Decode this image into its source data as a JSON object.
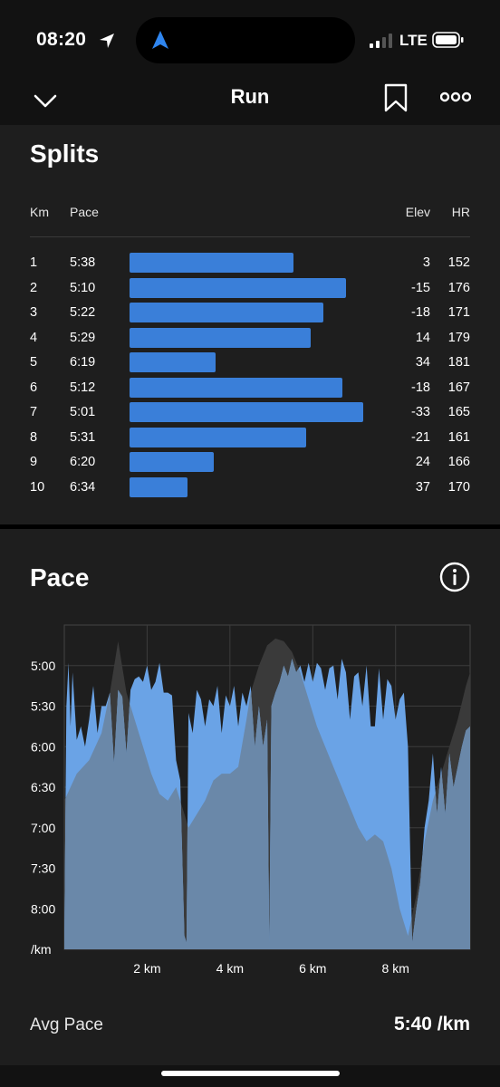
{
  "status_bar": {
    "time": "08:20",
    "network": "LTE"
  },
  "nav": {
    "title": "Run"
  },
  "splits": {
    "title": "Splits",
    "headers": {
      "km": "Km",
      "pace": "Pace",
      "elev": "Elev",
      "hr": "HR"
    },
    "rows": [
      {
        "km": "1",
        "pace": "5:38",
        "elev": "3",
        "hr": "152",
        "pace_seconds": 338
      },
      {
        "km": "2",
        "pace": "5:10",
        "elev": "-15",
        "hr": "176",
        "pace_seconds": 310
      },
      {
        "km": "3",
        "pace": "5:22",
        "elev": "-18",
        "hr": "171",
        "pace_seconds": 322
      },
      {
        "km": "4",
        "pace": "5:29",
        "elev": "14",
        "hr": "179",
        "pace_seconds": 329
      },
      {
        "km": "5",
        "pace": "6:19",
        "elev": "34",
        "hr": "181",
        "pace_seconds": 379
      },
      {
        "km": "6",
        "pace": "5:12",
        "elev": "-18",
        "hr": "167",
        "pace_seconds": 312
      },
      {
        "km": "7",
        "pace": "5:01",
        "elev": "-33",
        "hr": "165",
        "pace_seconds": 301
      },
      {
        "km": "8",
        "pace": "5:31",
        "elev": "-21",
        "hr": "161",
        "pace_seconds": 331
      },
      {
        "km": "9",
        "pace": "6:20",
        "elev": "24",
        "hr": "166",
        "pace_seconds": 380
      },
      {
        "km": "10",
        "pace": "6:34",
        "elev": "37",
        "hr": "170",
        "pace_seconds": 394
      }
    ]
  },
  "pace_section": {
    "title": "Pace",
    "avg_label": "Avg Pace",
    "avg_value": "5:40 /km"
  },
  "colors": {
    "accent": "#3a7fd9",
    "pace_fill": "#6aa3e6",
    "elev_fill": "#3a3a3a",
    "overlap_fill": "#6a88a9",
    "card_bg": "#1e1e1e"
  },
  "chart_data": {
    "type": "area",
    "xlabel": "",
    "ylabel": "",
    "x_unit": "km",
    "x_range": [
      0,
      9.8
    ],
    "x_ticks": [
      2,
      4,
      6,
      8
    ],
    "x_tick_labels": [
      "2 km",
      "4 km",
      "6 km",
      "8 km"
    ],
    "y_ticks_seconds": [
      300,
      330,
      360,
      390,
      420,
      450,
      480
    ],
    "y_tick_labels": [
      "5:00",
      "5:30",
      "6:00",
      "6:30",
      "7:00",
      "7:30",
      "8:00",
      "/km"
    ],
    "y_range_seconds": [
      270,
      510
    ],
    "y_inverted": true,
    "grid": true,
    "series": [
      {
        "x": [
          0,
          0.05,
          0.1,
          0.15,
          0.2,
          0.3,
          0.4,
          0.5,
          0.6,
          0.7,
          0.8,
          0.9,
          1.0,
          1.1,
          1.2,
          1.3,
          1.4,
          1.5,
          1.6,
          1.7,
          1.8,
          1.9,
          2.0,
          2.1,
          2.2,
          2.3,
          2.4,
          2.5,
          2.6,
          2.7,
          2.8,
          2.9,
          2.95,
          3.0,
          3.1,
          3.2,
          3.3,
          3.4,
          3.5,
          3.6,
          3.7,
          3.8,
          3.9,
          4.0,
          4.1,
          4.2,
          4.3,
          4.4,
          4.5,
          4.6,
          4.7,
          4.8,
          4.9,
          4.95,
          5.0,
          5.1,
          5.2,
          5.3,
          5.4,
          5.5,
          5.6,
          5.7,
          5.8,
          5.9,
          6.0,
          6.1,
          6.2,
          6.3,
          6.4,
          6.5,
          6.6,
          6.7,
          6.8,
          6.9,
          7.0,
          7.1,
          7.2,
          7.3,
          7.4,
          7.5,
          7.6,
          7.7,
          7.8,
          7.9,
          8.0,
          8.1,
          8.2,
          8.3,
          8.4,
          8.5,
          8.6,
          8.7,
          8.8,
          8.9,
          9.0,
          9.1,
          9.2,
          9.3,
          9.4,
          9.5,
          9.6,
          9.7,
          9.8
        ],
        "values": [
          505,
          330,
          298,
          345,
          305,
          355,
          345,
          360,
          340,
          315,
          350,
          330,
          330,
          320,
          372,
          318,
          323,
          365,
          318,
          310,
          308,
          312,
          300,
          318,
          312,
          298,
          320,
          320,
          322,
          370,
          385,
          500,
          505,
          335,
          350,
          318,
          325,
          345,
          325,
          330,
          315,
          350,
          322,
          330,
          315,
          345,
          320,
          330,
          315,
          360,
          330,
          360,
          340,
          505,
          330,
          320,
          312,
          300,
          308,
          295,
          305,
          300,
          312,
          298,
          312,
          298,
          302,
          318,
          302,
          300,
          325,
          295,
          305,
          340,
          308,
          305,
          330,
          300,
          345,
          345,
          302,
          340,
          310,
          315,
          340,
          325,
          320,
          360,
          505,
          480,
          460,
          420,
          400,
          365,
          410,
          375,
          410,
          365,
          390,
          375,
          360,
          348,
          345
        ]
      },
      {
        "x": [
          0,
          0.3,
          0.6,
          0.9,
          1.1,
          1.3,
          1.5,
          1.7,
          1.9,
          2.1,
          2.3,
          2.5,
          2.7,
          2.9,
          3.0,
          3.2,
          3.4,
          3.6,
          3.8,
          4.0,
          4.2,
          4.4,
          4.5,
          4.7,
          4.9,
          5.1,
          5.3,
          5.5,
          5.7,
          5.9,
          6.1,
          6.3,
          6.5,
          6.7,
          6.9,
          7.1,
          7.3,
          7.5,
          7.7,
          7.9,
          8.1,
          8.3,
          8.5,
          8.7,
          8.9,
          9.1,
          9.3,
          9.5,
          9.7,
          9.8
        ],
        "values": [
          400,
          380,
          370,
          350,
          320,
          282,
          320,
          340,
          360,
          380,
          395,
          400,
          390,
          410,
          420,
          410,
          400,
          385,
          380,
          380,
          375,
          340,
          320,
          300,
          285,
          280,
          282,
          290,
          305,
          325,
          345,
          360,
          375,
          390,
          405,
          420,
          430,
          425,
          430,
          450,
          480,
          500,
          470,
          430,
          400,
          380,
          360,
          340,
          315,
          305
        ]
      }
    ]
  }
}
